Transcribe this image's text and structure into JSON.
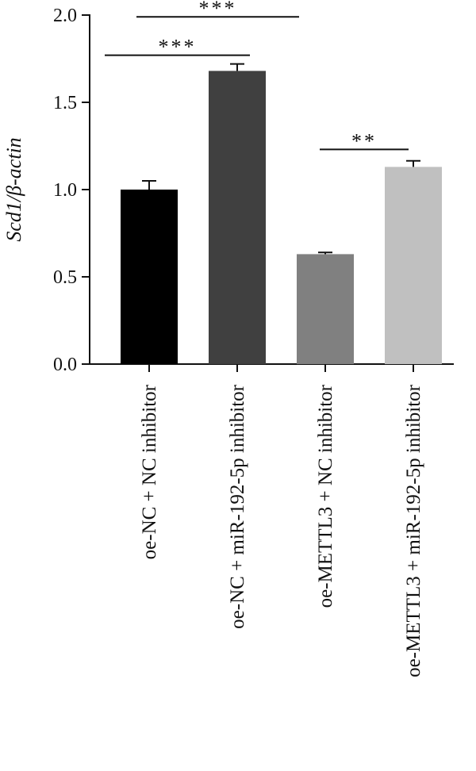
{
  "chart_data": {
    "type": "bar",
    "title": "",
    "xlabel": "",
    "ylabel": "Scd1/β-actin",
    "ylim": [
      0,
      2.0
    ],
    "yticks": [
      0.0,
      0.5,
      1.0,
      1.5,
      2.0
    ],
    "ytick_labels": [
      "0.0",
      "0.5",
      "1.0",
      "1.5",
      "2.0"
    ],
    "grid": false,
    "legend": "none",
    "categories": [
      "oe-NC + NC inhibitor",
      "oe-NC + miR-192-5p inhibitor",
      "oe-METTL3 + NC inhibitor",
      "oe-METTL3 + miR-192-5p inhibitor"
    ],
    "values": [
      1.0,
      1.68,
      0.63,
      1.13
    ],
    "errors": [
      0.05,
      0.04,
      0.01,
      0.035
    ],
    "bar_colors": [
      "#000000",
      "#404040",
      "#808080",
      "#c0c0c0"
    ],
    "significance": [
      {
        "from": 0,
        "to": 1,
        "label": "***",
        "y": 1.77
      },
      {
        "from": 0,
        "to": 2,
        "label": "***",
        "y": 1.99
      },
      {
        "from": 2,
        "to": 3,
        "label": "**",
        "y": 1.23
      }
    ]
  }
}
